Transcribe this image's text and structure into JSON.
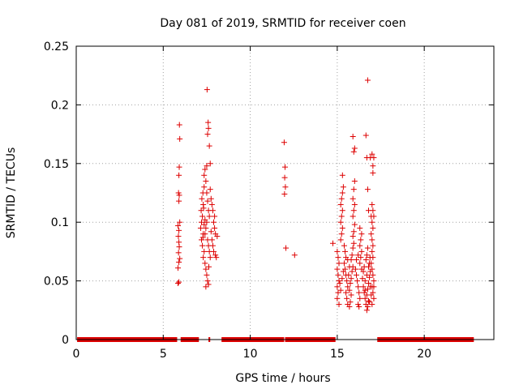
{
  "chart_data": {
    "type": "scatter",
    "title": "Day 081 of 2019, SRMTID for receiver coen",
    "xlabel": "GPS time / hours",
    "ylabel": "SRMTID / TECUs",
    "xlim": [
      0,
      24
    ],
    "ylim": [
      0,
      0.25
    ],
    "xticks": [
      0,
      5,
      10,
      15,
      20
    ],
    "xtick_labels": [
      "0",
      "5",
      "10",
      "15",
      "20"
    ],
    "yticks": [
      0,
      0.05,
      0.1,
      0.15,
      0.2,
      0.25
    ],
    "ytick_labels": [
      "0",
      "0.05",
      "0.1",
      "0.15",
      "0.2",
      "0.25"
    ],
    "grid": true,
    "marker": "+",
    "color": "#dd0000",
    "zero_segments": [
      [
        0.05,
        5.8
      ],
      [
        6.0,
        7.05
      ],
      [
        7.6,
        7.7
      ],
      [
        8.35,
        11.95
      ],
      [
        12.0,
        14.9
      ],
      [
        17.3,
        22.85
      ]
    ],
    "series": [
      {
        "name": "SRMTID",
        "points": [
          [
            5.85,
            0.048
          ],
          [
            5.9,
            0.049
          ],
          [
            5.85,
            0.061
          ],
          [
            5.9,
            0.066
          ],
          [
            5.95,
            0.069
          ],
          [
            5.88,
            0.074
          ],
          [
            5.92,
            0.079
          ],
          [
            5.9,
            0.083
          ],
          [
            5.87,
            0.088
          ],
          [
            5.9,
            0.093
          ],
          [
            5.85,
            0.097
          ],
          [
            5.95,
            0.1
          ],
          [
            5.9,
            0.118
          ],
          [
            5.92,
            0.123
          ],
          [
            5.88,
            0.125
          ],
          [
            5.9,
            0.14
          ],
          [
            5.92,
            0.147
          ],
          [
            5.95,
            0.171
          ],
          [
            5.93,
            0.183
          ],
          [
            7.15,
            0.095
          ],
          [
            7.2,
            0.1
          ],
          [
            7.25,
            0.105
          ],
          [
            7.18,
            0.11
          ],
          [
            7.3,
            0.115
          ],
          [
            7.22,
            0.12
          ],
          [
            7.28,
            0.125
          ],
          [
            7.35,
            0.13
          ],
          [
            7.2,
            0.085
          ],
          [
            7.3,
            0.09
          ],
          [
            7.25,
            0.08
          ],
          [
            7.35,
            0.075
          ],
          [
            7.3,
            0.07
          ],
          [
            7.4,
            0.065
          ],
          [
            7.45,
            0.06
          ],
          [
            7.5,
            0.055
          ],
          [
            7.55,
            0.05
          ],
          [
            7.45,
            0.045
          ],
          [
            7.6,
            0.047
          ],
          [
            7.35,
            0.14
          ],
          [
            7.4,
            0.145
          ],
          [
            7.45,
            0.135
          ],
          [
            7.5,
            0.125
          ],
          [
            7.55,
            0.118
          ],
          [
            7.6,
            0.11
          ],
          [
            7.65,
            0.105
          ],
          [
            7.5,
            0.1
          ],
          [
            7.45,
            0.095
          ],
          [
            7.4,
            0.09
          ],
          [
            7.55,
            0.085
          ],
          [
            7.6,
            0.08
          ],
          [
            7.65,
            0.075
          ],
          [
            7.7,
            0.07
          ],
          [
            7.5,
            0.148
          ],
          [
            7.55,
            0.175
          ],
          [
            7.6,
            0.18
          ],
          [
            7.58,
            0.185
          ],
          [
            7.52,
            0.213
          ],
          [
            7.65,
            0.165
          ],
          [
            7.7,
            0.15
          ],
          [
            7.75,
            0.12
          ],
          [
            7.8,
            0.115
          ],
          [
            7.85,
            0.11
          ],
          [
            7.9,
            0.1
          ],
          [
            7.95,
            0.095
          ],
          [
            8.0,
            0.09
          ],
          [
            7.8,
            0.085
          ],
          [
            7.85,
            0.08
          ],
          [
            7.9,
            0.075
          ],
          [
            8.0,
            0.072
          ],
          [
            8.05,
            0.07
          ],
          [
            8.1,
            0.088
          ],
          [
            7.95,
            0.105
          ],
          [
            7.7,
            0.128
          ],
          [
            7.75,
            0.092
          ],
          [
            7.35,
            0.098
          ],
          [
            7.4,
            0.102
          ],
          [
            7.28,
            0.087
          ],
          [
            7.32,
            0.112
          ],
          [
            7.62,
            0.062
          ],
          [
            11.95,
            0.168
          ],
          [
            12.0,
            0.147
          ],
          [
            11.98,
            0.138
          ],
          [
            12.02,
            0.13
          ],
          [
            11.97,
            0.124
          ],
          [
            12.05,
            0.078
          ],
          [
            12.55,
            0.072
          ],
          [
            14.75,
            0.082
          ],
          [
            15.0,
            0.075
          ],
          [
            15.05,
            0.07
          ],
          [
            15.1,
            0.065
          ],
          [
            15.0,
            0.06
          ],
          [
            15.05,
            0.055
          ],
          [
            15.1,
            0.05
          ],
          [
            15.0,
            0.045
          ],
          [
            15.05,
            0.04
          ],
          [
            15.0,
            0.035
          ],
          [
            15.1,
            0.03
          ],
          [
            15.2,
            0.085
          ],
          [
            15.25,
            0.09
          ],
          [
            15.3,
            0.095
          ],
          [
            15.2,
            0.1
          ],
          [
            15.25,
            0.105
          ],
          [
            15.3,
            0.11
          ],
          [
            15.2,
            0.115
          ],
          [
            15.25,
            0.12
          ],
          [
            15.3,
            0.125
          ],
          [
            15.35,
            0.13
          ],
          [
            15.3,
            0.14
          ],
          [
            15.4,
            0.08
          ],
          [
            15.45,
            0.075
          ],
          [
            15.5,
            0.07
          ],
          [
            15.4,
            0.065
          ],
          [
            15.45,
            0.06
          ],
          [
            15.5,
            0.055
          ],
          [
            15.55,
            0.05
          ],
          [
            15.6,
            0.045
          ],
          [
            15.5,
            0.04
          ],
          [
            15.55,
            0.035
          ],
          [
            15.6,
            0.03
          ],
          [
            15.7,
            0.028
          ],
          [
            15.75,
            0.032
          ],
          [
            15.8,
            0.038
          ],
          [
            15.7,
            0.042
          ],
          [
            15.75,
            0.048
          ],
          [
            15.8,
            0.052
          ],
          [
            15.85,
            0.058
          ],
          [
            15.9,
            0.062
          ],
          [
            15.8,
            0.068
          ],
          [
            15.85,
            0.072
          ],
          [
            15.9,
            0.078
          ],
          [
            15.95,
            0.082
          ],
          [
            15.9,
            0.088
          ],
          [
            15.95,
            0.092
          ],
          [
            16.0,
            0.098
          ],
          [
            15.9,
            0.105
          ],
          [
            15.95,
            0.11
          ],
          [
            16.0,
            0.115
          ],
          [
            15.9,
            0.12
          ],
          [
            15.95,
            0.128
          ],
          [
            16.0,
            0.135
          ],
          [
            15.95,
            0.16
          ],
          [
            16.0,
            0.163
          ],
          [
            15.9,
            0.173
          ],
          [
            16.05,
            0.06
          ],
          [
            16.1,
            0.055
          ],
          [
            16.15,
            0.05
          ],
          [
            16.2,
            0.045
          ],
          [
            16.25,
            0.04
          ],
          [
            16.3,
            0.035
          ],
          [
            16.2,
            0.03
          ],
          [
            16.25,
            0.028
          ],
          [
            16.3,
            0.065
          ],
          [
            16.35,
            0.07
          ],
          [
            16.4,
            0.075
          ],
          [
            16.3,
            0.08
          ],
          [
            16.35,
            0.085
          ],
          [
            16.4,
            0.09
          ],
          [
            16.3,
            0.095
          ],
          [
            16.5,
            0.045
          ],
          [
            16.55,
            0.04
          ],
          [
            16.6,
            0.035
          ],
          [
            16.65,
            0.03
          ],
          [
            16.7,
            0.025
          ],
          [
            16.75,
            0.028
          ],
          [
            16.8,
            0.033
          ],
          [
            16.7,
            0.038
          ],
          [
            16.75,
            0.043
          ],
          [
            16.8,
            0.048
          ],
          [
            16.85,
            0.053
          ],
          [
            16.9,
            0.058
          ],
          [
            16.8,
            0.062
          ],
          [
            16.7,
            0.055
          ],
          [
            16.6,
            0.05
          ],
          [
            16.65,
            0.068
          ],
          [
            16.7,
            0.072
          ],
          [
            16.75,
            0.078
          ],
          [
            16.8,
            0.11
          ],
          [
            16.75,
            0.128
          ],
          [
            16.7,
            0.155
          ],
          [
            16.65,
            0.174
          ],
          [
            16.75,
            0.221
          ],
          [
            16.9,
            0.155
          ],
          [
            16.95,
            0.105
          ],
          [
            17.0,
            0.1
          ],
          [
            17.05,
            0.095
          ],
          [
            16.95,
            0.09
          ],
          [
            17.0,
            0.085
          ],
          [
            17.05,
            0.08
          ],
          [
            17.0,
            0.075
          ],
          [
            17.05,
            0.07
          ],
          [
            16.95,
            0.065
          ],
          [
            17.0,
            0.06
          ],
          [
            17.05,
            0.055
          ],
          [
            17.1,
            0.05
          ],
          [
            17.0,
            0.045
          ],
          [
            17.05,
            0.04
          ],
          [
            17.1,
            0.035
          ],
          [
            17.0,
            0.03
          ],
          [
            17.05,
            0.11
          ],
          [
            17.1,
            0.105
          ],
          [
            17.0,
            0.115
          ],
          [
            17.05,
            0.148
          ],
          [
            17.1,
            0.155
          ],
          [
            17.0,
            0.158
          ],
          [
            17.05,
            0.142
          ],
          [
            16.85,
            0.065
          ],
          [
            16.88,
            0.07
          ],
          [
            16.4,
            0.06
          ],
          [
            16.45,
            0.052
          ],
          [
            16.5,
            0.058
          ],
          [
            16.2,
            0.072
          ],
          [
            16.1,
            0.068
          ],
          [
            15.65,
            0.055
          ],
          [
            15.7,
            0.062
          ],
          [
            15.6,
            0.068
          ],
          [
            15.35,
            0.058
          ],
          [
            15.28,
            0.052
          ],
          [
            15.15,
            0.048
          ],
          [
            15.2,
            0.042
          ],
          [
            16.55,
            0.062
          ],
          [
            16.6,
            0.042
          ],
          [
            16.85,
            0.032
          ],
          [
            16.9,
            0.045
          ],
          [
            16.95,
            0.038
          ],
          [
            17.1,
            0.045
          ]
        ]
      }
    ]
  }
}
